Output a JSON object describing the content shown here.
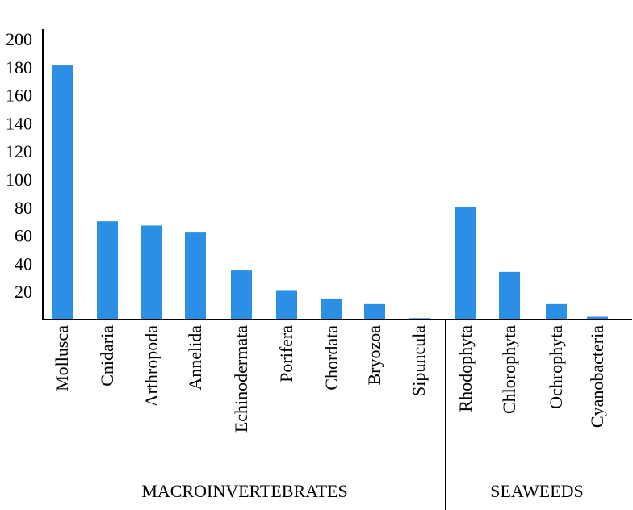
{
  "chart_data": {
    "type": "bar",
    "categories": [
      "Mollusca",
      "Cnidaria",
      "Arthropoda",
      "Annelida",
      "Echinodermata",
      "Porifera",
      "Chordata",
      "Bryozoa",
      "Sipuncula",
      "Rhodophyta",
      "Chlorophyta",
      "Ochrophyta",
      "Cyanobacteria"
    ],
    "values": [
      181,
      70,
      67,
      62,
      35,
      21,
      15,
      11,
      1,
      80,
      34,
      11,
      2
    ],
    "groups": [
      {
        "label": "MACROINVERTEBRATES",
        "categories": [
          "Mollusca",
          "Cnidaria",
          "Arthropoda",
          "Annelida",
          "Echinodermata",
          "Porifera",
          "Chordata",
          "Bryozoa",
          "Sipuncula"
        ]
      },
      {
        "label": "SEAWEEDS",
        "categories": [
          "Rhodophyta",
          "Chlorophyta",
          "Ochrophyta",
          "Cyanobacteria"
        ]
      }
    ],
    "yticks": [
      20,
      40,
      60,
      80,
      100,
      120,
      140,
      160,
      180,
      200
    ],
    "ylim": [
      0,
      205
    ],
    "bar_color": "#2b8fe6",
    "grid": false,
    "title": "",
    "xlabel": "",
    "ylabel": ""
  }
}
